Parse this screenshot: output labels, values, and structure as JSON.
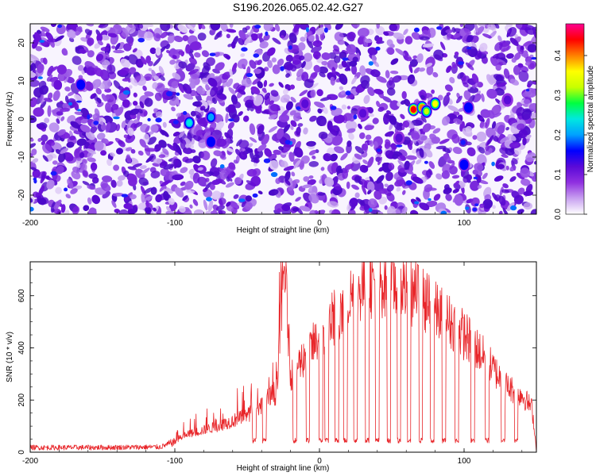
{
  "figure_title": "S196.2026.065.02.42.G27",
  "chart_data": [
    {
      "type": "heatmap",
      "title": "S196.2026.065.02.42.G27",
      "xlabel": "Height of straight line (km)",
      "ylabel": "Frequency (Hz)",
      "xlim": [
        -200,
        150
      ],
      "ylim": [
        -25,
        25
      ],
      "xticks": [
        "-200",
        "-100",
        "0",
        "100"
      ],
      "yticks": [
        "-20",
        "-10",
        "0",
        "10",
        "20"
      ],
      "colorbar": {
        "label": "Normalized spectral amplitude",
        "range": [
          0.0,
          0.48
        ],
        "ticks": [
          "0.0",
          "0.1",
          "0.2",
          "0.3",
          "0.4"
        ],
        "colors": [
          "#ffffff",
          "#c8a0f0",
          "#9030e0",
          "#5a0ad8",
          "#0000ff",
          "#00a0ff",
          "#00e8e0",
          "#00ff40",
          "#c8ff00",
          "#ffff00",
          "#ff8000",
          "#ff0000",
          "#ff0090"
        ]
      },
      "hotspots": [
        {
          "x": 65,
          "y": 2.5,
          "value": 0.45
        },
        {
          "x": 71,
          "y": 3.0,
          "value": 0.38
        },
        {
          "x": 80,
          "y": 4.0,
          "value": 0.36
        },
        {
          "x": 74,
          "y": 2.0,
          "value": 0.3
        },
        {
          "x": -90,
          "y": -1.0,
          "value": 0.22
        },
        {
          "x": -75,
          "y": 0.5,
          "value": 0.18
        },
        {
          "x": 103,
          "y": 3.0,
          "value": 0.16
        },
        {
          "x": -75,
          "y": -6.0,
          "value": 0.15
        },
        {
          "x": -165,
          "y": 9.0,
          "value": 0.14
        },
        {
          "x": 100,
          "y": -12.0,
          "value": 0.14
        },
        {
          "x": 30,
          "y": 1.5,
          "value": 0.12
        },
        {
          "x": -10,
          "y": 4.0,
          "value": 0.12
        },
        {
          "x": 55,
          "y": -5.0,
          "value": 0.11
        },
        {
          "x": 130,
          "y": 5.0,
          "value": 0.11
        }
      ]
    },
    {
      "type": "line",
      "xlabel": "Height of straight line (km)",
      "ylabel": "SNR (10 * v/v)",
      "xlim": [
        -200,
        150
      ],
      "ylim": [
        0,
        730
      ],
      "xticks": [
        "-200",
        "-100",
        "0",
        "100"
      ],
      "yticks": [
        "0",
        "200",
        "400",
        "600"
      ],
      "line_color": "#e8262a",
      "x": [
        -200,
        -150,
        -110,
        -100,
        -95,
        -90,
        -80,
        -70,
        -60,
        -50,
        -40,
        -30,
        -24,
        -20,
        -10,
        0,
        10,
        20,
        30,
        40,
        50,
        60,
        70,
        80,
        90,
        100,
        110,
        120,
        130,
        140,
        147,
        150
      ],
      "y": [
        18,
        18,
        20,
        40,
        60,
        70,
        85,
        100,
        120,
        140,
        180,
        230,
        730,
        300,
        370,
        440,
        520,
        590,
        640,
        660,
        650,
        630,
        590,
        540,
        500,
        450,
        390,
        320,
        250,
        220,
        170,
        10
      ],
      "dropouts": [
        -45,
        -38,
        -17,
        -8,
        1,
        5,
        12,
        18,
        25,
        33,
        40,
        48,
        55,
        62,
        70,
        78,
        86,
        95,
        106,
        116,
        127,
        136
      ],
      "dropout_floor": 45
    }
  ]
}
